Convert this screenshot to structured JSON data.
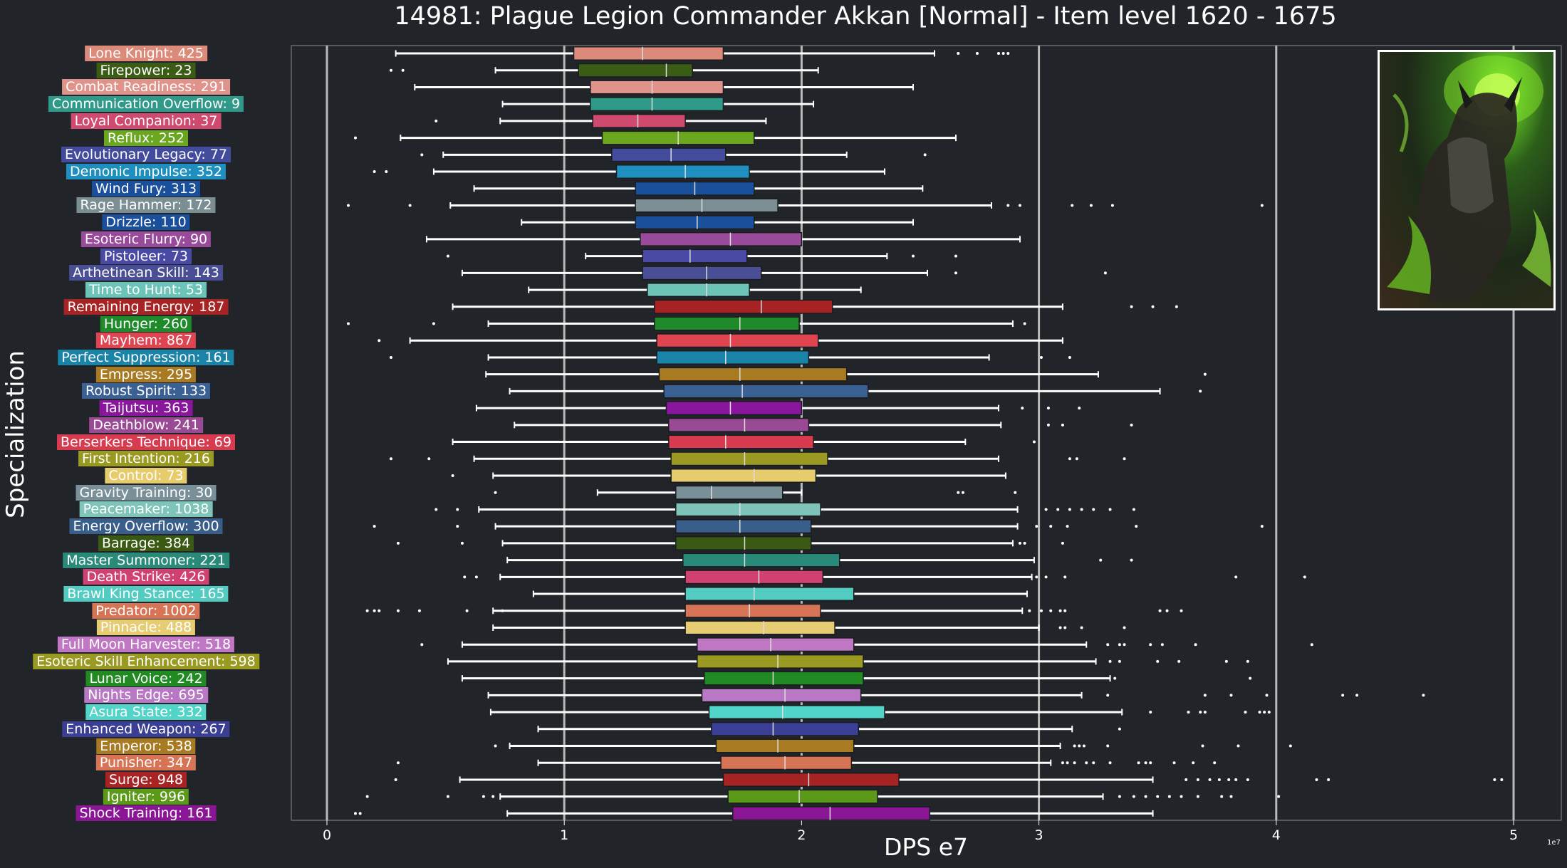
{
  "title": "14981: Plague Legion Commander Akkan [Normal] - Item level 1620 - 1675",
  "portrait": {
    "icon": "boss-portrait-icon",
    "accent": "#8fe03a"
  },
  "chart_data": {
    "type": "boxplot",
    "orientation": "horizontal",
    "xlabel": "DPS e7",
    "ylabel": "Specialization",
    "x_scale_note": "1e7",
    "xlim": [
      -0.15,
      5.2
    ],
    "xticks": [
      0,
      1,
      2,
      3,
      4,
      5
    ],
    "xtick_labels": [
      "0",
      "1",
      "2",
      "3",
      "4",
      "5"
    ],
    "grid": "vertical major gridlines",
    "series": [
      {
        "label": "Lone Knight: 425",
        "color": "#dc8a7a",
        "whisker_low": 0.29,
        "q1": 1.04,
        "median": 1.33,
        "q3": 1.67,
        "whisker_high": 2.56,
        "outliers": [
          2.66,
          2.74,
          2.83,
          2.85,
          2.87
        ]
      },
      {
        "label": "Firepower: 23",
        "color": "#3a5c14",
        "whisker_low": 0.71,
        "q1": 1.06,
        "median": 1.43,
        "q3": 1.54,
        "whisker_high": 2.07,
        "outliers": [
          0.27,
          0.32
        ]
      },
      {
        "label": "Combat Readiness: 291",
        "color": "#e0938a",
        "whisker_low": 0.37,
        "q1": 1.11,
        "median": 1.37,
        "q3": 1.67,
        "whisker_high": 2.47,
        "outliers": []
      },
      {
        "label": "Communication Overflow: 9",
        "color": "#2f9a8a",
        "whisker_low": 0.74,
        "q1": 1.11,
        "median": 1.37,
        "q3": 1.67,
        "whisker_high": 2.05,
        "outliers": []
      },
      {
        "label": "Loyal Companion: 37",
        "color": "#d04a70",
        "whisker_low": 0.73,
        "q1": 1.12,
        "median": 1.31,
        "q3": 1.51,
        "whisker_high": 1.85,
        "outliers": [
          0.46
        ]
      },
      {
        "label": "Reflux: 252",
        "color": "#6aa61e",
        "whisker_low": 0.31,
        "q1": 1.16,
        "median": 1.48,
        "q3": 1.8,
        "whisker_high": 2.65,
        "outliers": [
          0.12
        ]
      },
      {
        "label": "Evolutionary Legacy: 77",
        "color": "#434c9c",
        "whisker_low": 0.49,
        "q1": 1.2,
        "median": 1.45,
        "q3": 1.68,
        "whisker_high": 2.19,
        "outliers": [
          0.4,
          2.52
        ]
      },
      {
        "label": "Demonic Impulse: 352",
        "color": "#1e8fbe",
        "whisker_low": 0.45,
        "q1": 1.22,
        "median": 1.51,
        "q3": 1.78,
        "whisker_high": 2.35,
        "outliers": [
          0.2,
          0.25
        ]
      },
      {
        "label": "Wind Fury: 313",
        "color": "#1a4f9c",
        "whisker_low": 0.62,
        "q1": 1.3,
        "median": 1.55,
        "q3": 1.8,
        "whisker_high": 2.51,
        "outliers": []
      },
      {
        "label": "Rage Hammer: 172",
        "color": "#7a8e94",
        "whisker_low": 0.52,
        "q1": 1.3,
        "median": 1.58,
        "q3": 1.9,
        "whisker_high": 2.8,
        "outliers": [
          0.09,
          0.35,
          2.87,
          2.92,
          3.14,
          3.22,
          3.31,
          3.94
        ]
      },
      {
        "label": "Drizzle: 110",
        "color": "#1a4f9c",
        "whisker_low": 0.82,
        "q1": 1.3,
        "median": 1.56,
        "q3": 1.8,
        "whisker_high": 2.47,
        "outliers": []
      },
      {
        "label": "Esoteric Flurry: 90",
        "color": "#9a4a9a",
        "whisker_low": 0.42,
        "q1": 1.32,
        "median": 1.7,
        "q3": 2.0,
        "whisker_high": 2.92,
        "outliers": []
      },
      {
        "label": "Pistoleer: 73",
        "color": "#4a4aa6",
        "whisker_low": 1.09,
        "q1": 1.33,
        "median": 1.53,
        "q3": 1.77,
        "whisker_high": 2.36,
        "outliers": [
          0.51,
          2.47,
          2.65
        ]
      },
      {
        "label": "Arthetinean Skill: 143",
        "color": "#4a4e94",
        "whisker_low": 0.57,
        "q1": 1.33,
        "median": 1.6,
        "q3": 1.83,
        "whisker_high": 2.53,
        "outliers": [
          2.65,
          3.28
        ]
      },
      {
        "label": "Time to Hunt: 53",
        "color": "#6cc4b8",
        "whisker_low": 0.85,
        "q1": 1.35,
        "median": 1.6,
        "q3": 1.78,
        "whisker_high": 2.25,
        "outliers": []
      },
      {
        "label": "Remaining Energy: 187",
        "color": "#a82424",
        "whisker_low": 0.53,
        "q1": 1.38,
        "median": 1.83,
        "q3": 2.13,
        "whisker_high": 3.1,
        "outliers": [
          3.39,
          3.48,
          3.58
        ]
      },
      {
        "label": "Hunger: 260",
        "color": "#1f8a2a",
        "whisker_low": 0.68,
        "q1": 1.38,
        "median": 1.74,
        "q3": 1.99,
        "whisker_high": 2.89,
        "outliers": [
          0.09,
          0.45,
          2.94
        ]
      },
      {
        "label": "Mayhem: 867",
        "color": "#e04450",
        "whisker_low": 0.35,
        "q1": 1.39,
        "median": 1.7,
        "q3": 2.07,
        "whisker_high": 3.1,
        "outliers": [
          0.22
        ]
      },
      {
        "label": "Perfect Suppression: 161",
        "color": "#1a84a8",
        "whisker_low": 0.68,
        "q1": 1.39,
        "median": 1.68,
        "q3": 2.03,
        "whisker_high": 2.79,
        "outliers": [
          0.27,
          3.01,
          3.13
        ]
      },
      {
        "label": "Empress: 295",
        "color": "#a87a22",
        "whisker_low": 0.67,
        "q1": 1.4,
        "median": 1.74,
        "q3": 2.19,
        "whisker_high": 3.25,
        "outliers": [
          3.7
        ]
      },
      {
        "label": "Robust Spirit: 133",
        "color": "#3a6094",
        "whisker_low": 0.77,
        "q1": 1.42,
        "median": 1.75,
        "q3": 2.28,
        "whisker_high": 3.51,
        "outliers": [
          3.68
        ]
      },
      {
        "label": "Taijutsu: 363",
        "color": "#8a169e",
        "whisker_low": 0.63,
        "q1": 1.43,
        "median": 1.7,
        "q3": 2.0,
        "whisker_high": 2.83,
        "outliers": [
          2.93,
          3.04,
          3.17
        ]
      },
      {
        "label": "Deathblow: 241",
        "color": "#9a4a94",
        "whisker_low": 0.79,
        "q1": 1.44,
        "median": 1.76,
        "q3": 2.03,
        "whisker_high": 2.84,
        "outliers": [
          3.04,
          3.1,
          3.39
        ]
      },
      {
        "label": "Berserkers Technique: 69",
        "color": "#d83a50",
        "whisker_low": 0.53,
        "q1": 1.44,
        "median": 1.68,
        "q3": 2.05,
        "whisker_high": 2.69,
        "outliers": [
          2.98
        ]
      },
      {
        "label": "First Intention: 216",
        "color": "#9a9a22",
        "whisker_low": 0.62,
        "q1": 1.45,
        "median": 1.76,
        "q3": 2.11,
        "whisker_high": 2.83,
        "outliers": [
          0.27,
          0.43,
          3.13,
          3.16,
          3.36
        ]
      },
      {
        "label": "Control: 73",
        "color": "#e6cc6c",
        "whisker_low": 0.7,
        "q1": 1.45,
        "median": 1.8,
        "q3": 2.06,
        "whisker_high": 2.86,
        "outliers": [
          0.53
        ]
      },
      {
        "label": "Gravity Training: 30",
        "color": "#7a9098",
        "whisker_low": 1.14,
        "q1": 1.47,
        "median": 1.62,
        "q3": 1.92,
        "whisker_high": 2.0,
        "outliers": [
          0.71,
          2.66,
          2.68,
          2.9
        ]
      },
      {
        "label": "Peacemaker: 1038",
        "color": "#7ec4b8",
        "whisker_low": 0.64,
        "q1": 1.47,
        "median": 1.74,
        "q3": 2.08,
        "whisker_high": 2.91,
        "outliers": [
          0.46,
          0.55,
          3.03,
          3.08,
          3.13,
          3.18,
          3.23,
          3.3,
          3.4
        ]
      },
      {
        "label": "Energy Overflow: 300",
        "color": "#3a5e8a",
        "whisker_low": 0.71,
        "q1": 1.47,
        "median": 1.74,
        "q3": 2.04,
        "whisker_high": 2.91,
        "outliers": [
          0.2,
          0.55,
          2.99,
          3.05,
          3.12,
          3.41,
          3.94
        ]
      },
      {
        "label": "Barrage: 384",
        "color": "#3a5a14",
        "whisker_low": 0.74,
        "q1": 1.47,
        "median": 1.76,
        "q3": 2.04,
        "whisker_high": 2.89,
        "outliers": [
          0.3,
          0.57,
          2.92,
          2.94,
          3.1
        ]
      },
      {
        "label": "Master Summoner: 221",
        "color": "#2a8a7a",
        "whisker_low": 0.76,
        "q1": 1.5,
        "median": 1.76,
        "q3": 2.16,
        "whisker_high": 2.98,
        "outliers": [
          3.26,
          3.39
        ]
      },
      {
        "label": "Death Strike: 426",
        "color": "#d04070",
        "whisker_low": 0.73,
        "q1": 1.51,
        "median": 1.82,
        "q3": 2.09,
        "whisker_high": 2.97,
        "outliers": [
          0.58,
          0.63,
          2.99,
          3.03,
          3.11,
          3.83,
          4.12
        ]
      },
      {
        "label": "Brawl King Stance: 165",
        "color": "#52cbc0",
        "whisker_low": 0.87,
        "q1": 1.51,
        "median": 1.8,
        "q3": 2.22,
        "whisker_high": 2.95,
        "outliers": []
      },
      {
        "label": "Predator: 1002",
        "color": "#d87456",
        "whisker_low": 0.7,
        "q1": 1.51,
        "median": 1.78,
        "q3": 2.08,
        "whisker_high": 2.93,
        "outliers": [
          0.17,
          0.2,
          0.22,
          0.3,
          0.39,
          0.59,
          0.74,
          2.96,
          3.01,
          3.05,
          3.09,
          3.11,
          3.51,
          3.54,
          3.6
        ]
      },
      {
        "label": "Pinnacle: 488",
        "color": "#e6cc72",
        "whisker_low": 0.7,
        "q1": 1.51,
        "median": 1.84,
        "q3": 2.14,
        "whisker_high": 3.0,
        "outliers": [
          3.09,
          3.11,
          3.18,
          3.36
        ]
      },
      {
        "label": "Full Moon Harvester: 518",
        "color": "#c078c4",
        "whisker_low": 0.57,
        "q1": 1.56,
        "median": 1.87,
        "q3": 2.22,
        "whisker_high": 3.2,
        "outliers": [
          0.4,
          3.29,
          3.34,
          3.36,
          3.47,
          3.52,
          3.66,
          4.15
        ]
      },
      {
        "label": "Esoteric Skill Enhancement: 598",
        "color": "#9a9a22",
        "whisker_low": 0.51,
        "q1": 1.56,
        "median": 1.9,
        "q3": 2.26,
        "whisker_high": 3.24,
        "outliers": [
          3.3,
          3.34,
          3.5,
          3.59,
          3.79,
          3.88
        ]
      },
      {
        "label": "Lunar Voice: 242",
        "color": "#228a22",
        "whisker_low": 0.57,
        "q1": 1.59,
        "median": 1.88,
        "q3": 2.26,
        "whisker_high": 3.3,
        "outliers": [
          3.32,
          3.89
        ]
      },
      {
        "label": "Nights Edge: 695",
        "color": "#b878c4",
        "whisker_low": 0.68,
        "q1": 1.58,
        "median": 1.93,
        "q3": 2.25,
        "whisker_high": 3.18,
        "outliers": [
          3.29,
          3.7,
          3.81,
          3.96,
          4.28,
          4.34,
          4.62
        ]
      },
      {
        "label": "Asura State: 332",
        "color": "#52d4c8",
        "whisker_low": 0.69,
        "q1": 1.61,
        "median": 1.92,
        "q3": 2.35,
        "whisker_high": 3.35,
        "outliers": [
          3.47,
          3.63,
          3.68,
          3.7,
          3.87,
          3.93,
          3.95,
          3.97
        ]
      },
      {
        "label": "Enhanced Weapon: 267",
        "color": "#3a3e94",
        "whisker_low": 0.89,
        "q1": 1.62,
        "median": 1.88,
        "q3": 2.24,
        "whisker_high": 3.14,
        "outliers": [
          3.34
        ]
      },
      {
        "label": "Emperor: 538",
        "color": "#a87a22",
        "whisker_low": 0.77,
        "q1": 1.64,
        "median": 1.9,
        "q3": 2.22,
        "whisker_high": 3.09,
        "outliers": [
          0.71,
          3.15,
          3.17,
          3.19,
          3.29,
          3.69,
          3.84,
          4.06
        ]
      },
      {
        "label": "Punisher: 347",
        "color": "#d87456",
        "whisker_low": 0.89,
        "q1": 1.66,
        "median": 1.93,
        "q3": 2.21,
        "whisker_high": 3.05,
        "outliers": [
          0.3,
          3.1,
          3.12,
          3.15,
          3.2,
          3.23,
          3.3,
          3.42,
          3.45,
          3.47,
          3.57,
          3.65,
          3.74
        ]
      },
      {
        "label": "Surge: 948",
        "color": "#a82424",
        "whisker_low": 0.56,
        "q1": 1.67,
        "median": 2.03,
        "q3": 2.41,
        "whisker_high": 3.48,
        "outliers": [
          0.29,
          3.62,
          3.67,
          3.72,
          3.76,
          3.8,
          3.83,
          3.88,
          4.17,
          4.22,
          4.92,
          4.95
        ]
      },
      {
        "label": "Igniter: 996",
        "color": "#5a9a18",
        "whisker_low": 0.73,
        "q1": 1.69,
        "median": 1.99,
        "q3": 2.32,
        "whisker_high": 3.27,
        "outliers": [
          0.17,
          0.51,
          0.66,
          0.7,
          3.34,
          3.4,
          3.45,
          3.5,
          3.55,
          3.6,
          3.67,
          3.77,
          3.81,
          4.01
        ]
      },
      {
        "label": "Shock Training: 161",
        "color": "#8a1696",
        "whisker_low": 0.76,
        "q1": 1.71,
        "median": 2.12,
        "q3": 2.54,
        "whisker_high": 3.48,
        "outliers": [
          0.12,
          0.14
        ]
      }
    ]
  }
}
